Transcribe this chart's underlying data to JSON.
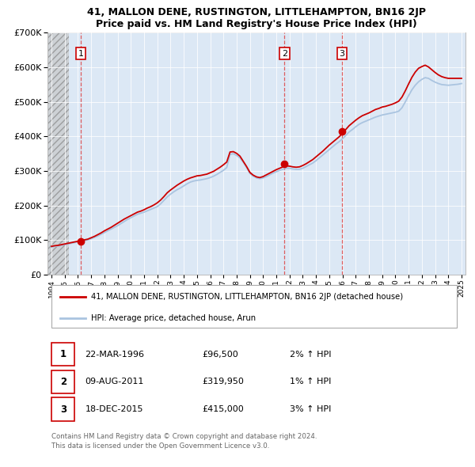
{
  "title": "41, MALLON DENE, RUSTINGTON, LITTLEHAMPTON, BN16 2JP",
  "subtitle": "Price paid vs. HM Land Registry's House Price Index (HPI)",
  "ylim": [
    0,
    700000
  ],
  "yticks": [
    0,
    100000,
    200000,
    300000,
    400000,
    500000,
    600000,
    700000
  ],
  "xlim_start": 1993.7,
  "xlim_end": 2025.3,
  "sale_years": [
    1996.22,
    2011.61,
    2015.97
  ],
  "sale_prices": [
    96500,
    319950,
    415000
  ],
  "sale_labels": [
    "1",
    "2",
    "3"
  ],
  "legend_line1": "41, MALLON DENE, RUSTINGTON, LITTLEHAMPTON, BN16 2JP (detached house)",
  "legend_line2": "HPI: Average price, detached house, Arun",
  "table_rows": [
    [
      "1",
      "22-MAR-1996",
      "£96,500",
      "2% ↑ HPI"
    ],
    [
      "2",
      "09-AUG-2011",
      "£319,950",
      "1% ↑ HPI"
    ],
    [
      "3",
      "18-DEC-2015",
      "£415,000",
      "3% ↑ HPI"
    ]
  ],
  "footer": "Contains HM Land Registry data © Crown copyright and database right 2024.\nThis data is licensed under the Open Government Licence v3.0.",
  "hpi_color": "#aac4e0",
  "price_color": "#cc0000",
  "plot_bg_color": "#dce8f5",
  "hatch_end_year": 1995.3,
  "hpi_x": [
    1994.0,
    1994.25,
    1994.5,
    1994.75,
    1995.0,
    1995.25,
    1995.5,
    1995.75,
    1996.0,
    1996.25,
    1996.5,
    1996.75,
    1997.0,
    1997.25,
    1997.5,
    1997.75,
    1998.0,
    1998.25,
    1998.5,
    1998.75,
    1999.0,
    1999.25,
    1999.5,
    1999.75,
    2000.0,
    2000.25,
    2000.5,
    2000.75,
    2001.0,
    2001.25,
    2001.5,
    2001.75,
    2002.0,
    2002.25,
    2002.5,
    2002.75,
    2003.0,
    2003.25,
    2003.5,
    2003.75,
    2004.0,
    2004.25,
    2004.5,
    2004.75,
    2005.0,
    2005.25,
    2005.5,
    2005.75,
    2006.0,
    2006.25,
    2006.5,
    2006.75,
    2007.0,
    2007.25,
    2007.5,
    2007.75,
    2008.0,
    2008.25,
    2008.5,
    2008.75,
    2009.0,
    2009.25,
    2009.5,
    2009.75,
    2010.0,
    2010.25,
    2010.5,
    2010.75,
    2011.0,
    2011.25,
    2011.5,
    2011.75,
    2012.0,
    2012.25,
    2012.5,
    2012.75,
    2013.0,
    2013.25,
    2013.5,
    2013.75,
    2014.0,
    2014.25,
    2014.5,
    2014.75,
    2015.0,
    2015.25,
    2015.5,
    2015.75,
    2016.0,
    2016.25,
    2016.5,
    2016.75,
    2017.0,
    2017.25,
    2017.5,
    2017.75,
    2018.0,
    2018.25,
    2018.5,
    2018.75,
    2019.0,
    2019.25,
    2019.5,
    2019.75,
    2020.0,
    2020.25,
    2020.5,
    2020.75,
    2021.0,
    2021.25,
    2021.5,
    2021.75,
    2022.0,
    2022.25,
    2022.5,
    2022.75,
    2023.0,
    2023.25,
    2023.5,
    2023.75,
    2024.0,
    2024.25,
    2024.5,
    2024.75,
    2025.0
  ],
  "hpi_y": [
    80000,
    82000,
    83000,
    85000,
    87000,
    89000,
    91000,
    93000,
    95000,
    97000,
    99000,
    101000,
    104000,
    108000,
    112000,
    117000,
    122000,
    127000,
    132000,
    137000,
    142000,
    148000,
    154000,
    160000,
    165000,
    170000,
    175000,
    178000,
    181000,
    185000,
    189000,
    193000,
    197000,
    205000,
    215000,
    225000,
    233000,
    240000,
    246000,
    251000,
    257000,
    263000,
    268000,
    271000,
    273000,
    274000,
    276000,
    278000,
    281000,
    285000,
    290000,
    296000,
    302000,
    310000,
    348000,
    350000,
    345000,
    338000,
    325000,
    310000,
    293000,
    285000,
    280000,
    278000,
    280000,
    284000,
    289000,
    294000,
    298000,
    302000,
    305000,
    308000,
    308000,
    306000,
    305000,
    305000,
    308000,
    313000,
    318000,
    323000,
    330000,
    338000,
    346000,
    354000,
    362000,
    370000,
    378000,
    385000,
    393000,
    403000,
    413000,
    420000,
    428000,
    435000,
    440000,
    444000,
    448000,
    452000,
    456000,
    459000,
    462000,
    464000,
    466000,
    468000,
    470000,
    473000,
    483000,
    500000,
    518000,
    535000,
    548000,
    558000,
    565000,
    570000,
    568000,
    562000,
    557000,
    553000,
    550000,
    549000,
    548000,
    549000,
    550000,
    551000,
    553000
  ],
  "price_x": [
    1994.0,
    1994.25,
    1994.5,
    1994.75,
    1995.0,
    1995.25,
    1995.5,
    1995.75,
    1996.0,
    1996.25,
    1996.5,
    1996.75,
    1997.0,
    1997.25,
    1997.5,
    1997.75,
    1998.0,
    1998.25,
    1998.5,
    1998.75,
    1999.0,
    1999.25,
    1999.5,
    1999.75,
    2000.0,
    2000.25,
    2000.5,
    2000.75,
    2001.0,
    2001.25,
    2001.5,
    2001.75,
    2002.0,
    2002.25,
    2002.5,
    2002.75,
    2003.0,
    2003.25,
    2003.5,
    2003.75,
    2004.0,
    2004.25,
    2004.5,
    2004.75,
    2005.0,
    2005.25,
    2005.5,
    2005.75,
    2006.0,
    2006.25,
    2006.5,
    2006.75,
    2007.0,
    2007.25,
    2007.5,
    2007.75,
    2008.0,
    2008.25,
    2008.5,
    2008.75,
    2009.0,
    2009.25,
    2009.5,
    2009.75,
    2010.0,
    2010.25,
    2010.5,
    2010.75,
    2011.0,
    2011.25,
    2011.5,
    2011.75,
    2012.0,
    2012.25,
    2012.5,
    2012.75,
    2013.0,
    2013.25,
    2013.5,
    2013.75,
    2014.0,
    2014.25,
    2014.5,
    2014.75,
    2015.0,
    2015.25,
    2015.5,
    2015.75,
    2016.0,
    2016.25,
    2016.5,
    2016.75,
    2017.0,
    2017.25,
    2017.5,
    2017.75,
    2018.0,
    2018.25,
    2018.5,
    2018.75,
    2019.0,
    2019.25,
    2019.5,
    2019.75,
    2020.0,
    2020.25,
    2020.5,
    2020.75,
    2021.0,
    2021.25,
    2021.5,
    2021.75,
    2022.0,
    2022.25,
    2022.5,
    2022.75,
    2023.0,
    2023.25,
    2023.5,
    2023.75,
    2024.0,
    2024.25,
    2024.5,
    2024.75,
    2025.0
  ],
  "price_y": [
    82000,
    84000,
    85000,
    87000,
    89000,
    91000,
    93000,
    95000,
    97000,
    99000,
    101000,
    103000,
    107000,
    111000,
    116000,
    121000,
    127000,
    132000,
    137000,
    143000,
    149000,
    155000,
    161000,
    166000,
    171000,
    176000,
    181000,
    184000,
    188000,
    193000,
    197000,
    202000,
    208000,
    216000,
    226000,
    237000,
    245000,
    252000,
    259000,
    265000,
    271000,
    276000,
    280000,
    283000,
    286000,
    287000,
    289000,
    291000,
    295000,
    299000,
    305000,
    311000,
    318000,
    326000,
    355000,
    356000,
    351000,
    343000,
    328000,
    313000,
    296000,
    288000,
    283000,
    281000,
    284000,
    289000,
    294000,
    299000,
    304000,
    308000,
    312000,
    315000,
    314000,
    312000,
    311000,
    312000,
    316000,
    321000,
    327000,
    333000,
    341000,
    349000,
    357000,
    366000,
    375000,
    383000,
    391000,
    399000,
    409000,
    420000,
    431000,
    439000,
    447000,
    454000,
    460000,
    464000,
    468000,
    473000,
    478000,
    481000,
    485000,
    487000,
    490000,
    493000,
    497000,
    502000,
    514000,
    532000,
    552000,
    571000,
    586000,
    597000,
    602000,
    606000,
    601000,
    593000,
    585000,
    578000,
    573000,
    570000,
    568000,
    568000,
    568000,
    568000,
    568000
  ]
}
